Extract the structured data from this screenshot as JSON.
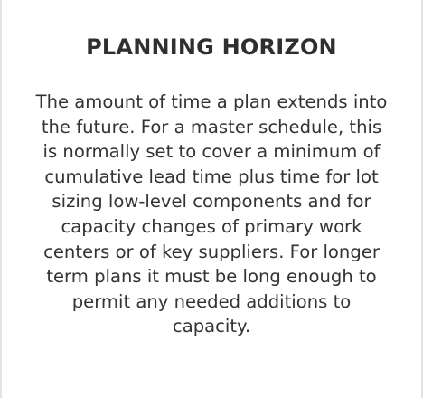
{
  "term": {
    "title": "PLANNING HORIZON",
    "definition": "The amount of time a plan extends into the future. For a master schedule, this is normally set to cover a minimum of cumulative lead time plus time for lot sizing low-level components and for capacity changes of primary work centers or of key suppliers. For longer term plans it must be long enough to permit any needed additions to capacity."
  },
  "colors": {
    "text": "#333333",
    "border": "#e3e3e3",
    "background": "#ffffff"
  }
}
